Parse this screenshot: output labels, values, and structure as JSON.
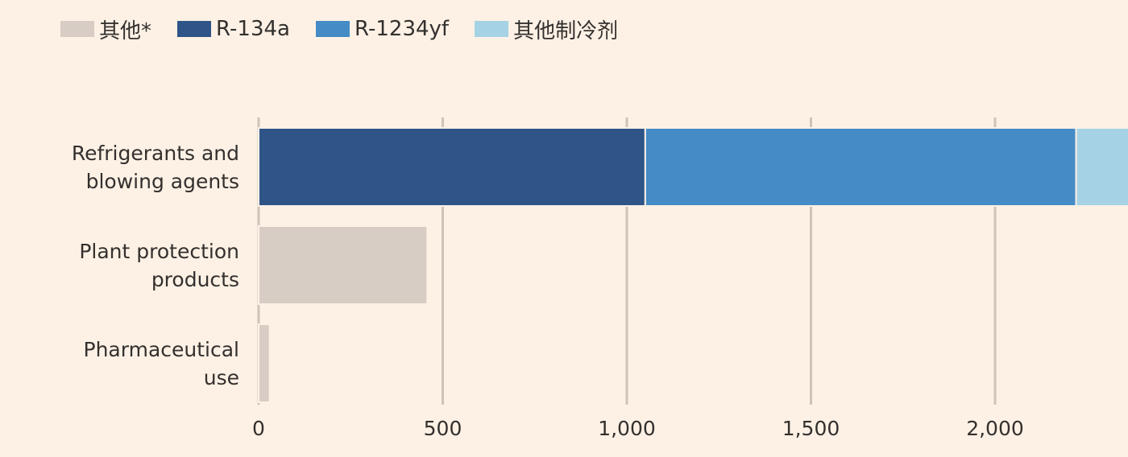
{
  "chart_data": {
    "type": "bar",
    "orientation": "horizontal",
    "stacked": true,
    "categories": [
      [
        "Refrigerants and",
        "blowing agents"
      ],
      [
        "Plant protection",
        "products"
      ],
      [
        "Pharmaceutical",
        "use"
      ]
    ],
    "series": [
      {
        "name": "其他*",
        "color": "#d8cdc4",
        "values": [
          0,
          458,
          30
        ]
      },
      {
        "name": "R-134a",
        "color": "#2e5488",
        "values": [
          1050,
          0,
          0
        ]
      },
      {
        "name": "R-1234yf",
        "color": "#458bc6",
        "values": [
          1170,
          0,
          0
        ]
      },
      {
        "name": "其他制冷剂",
        "color": "#a5d2e4",
        "values": [
          300,
          0,
          0
        ]
      }
    ],
    "xlim": [
      0,
      2380
    ],
    "xticks": [
      0,
      500,
      1000,
      1500,
      2000
    ],
    "xtick_labels": [
      "0",
      "500",
      "1,000",
      "1,500",
      "2,000"
    ],
    "grid": true,
    "legend_position": "top-left",
    "title": "",
    "xlabel": "",
    "ylabel": ""
  }
}
